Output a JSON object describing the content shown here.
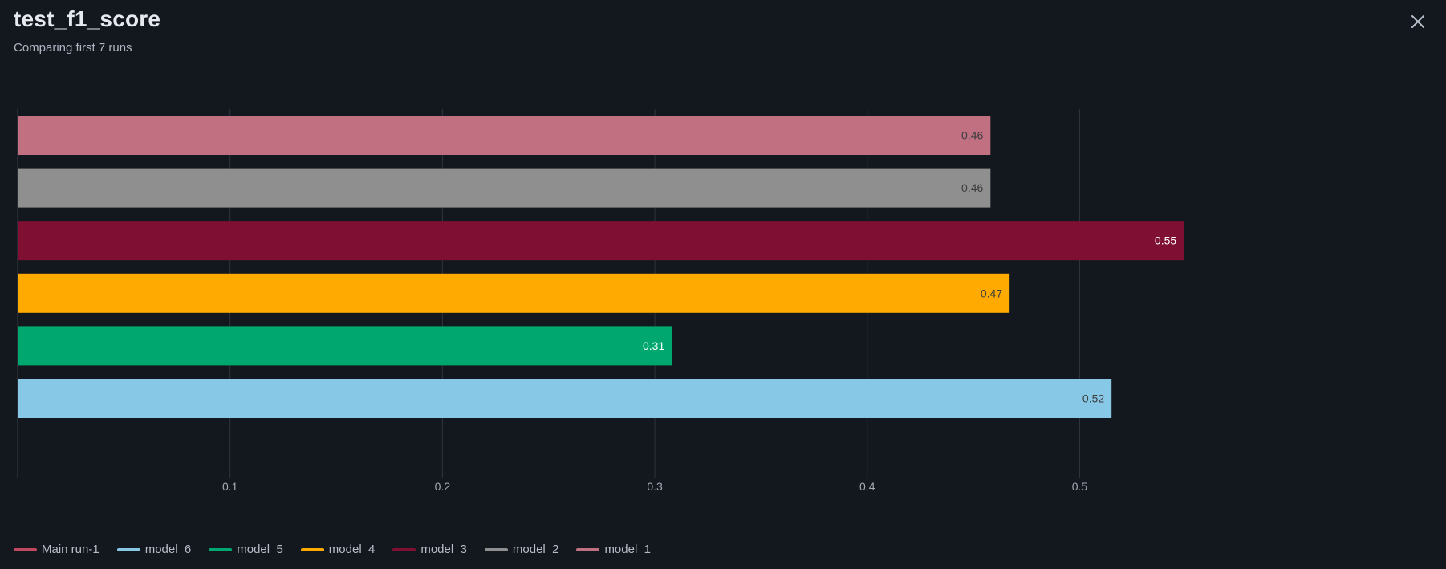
{
  "header": {
    "title": "test_f1_score",
    "subtitle": "Comparing first 7 runs",
    "close_icon": "close-icon"
  },
  "chart_data": {
    "type": "bar",
    "orientation": "horizontal",
    "title": "test_f1_score",
    "subtitle": "Comparing first 7 runs",
    "xlabel": "",
    "ylabel": "",
    "xlim": [
      0,
      0.5818
    ],
    "x_ticks": [
      "0.1",
      "0.2",
      "0.3",
      "0.4",
      "0.5"
    ],
    "x_tick_values": [
      0.1,
      0.2,
      0.3,
      0.4,
      0.5
    ],
    "grid": true,
    "legend_position": "bottom-left",
    "bars": [
      {
        "name": "model_1",
        "value": 0.458,
        "label": "0.46",
        "color": "#c07080",
        "label_color": "#3d3d3d"
      },
      {
        "name": "model_2",
        "value": 0.458,
        "label": "0.46",
        "color": "#8f8f8f",
        "label_color": "#3d3d3d"
      },
      {
        "name": "model_3",
        "value": 0.549,
        "label": "0.55",
        "color": "#7f1034",
        "label_color": "#ffffff"
      },
      {
        "name": "model_4",
        "value": 0.467,
        "label": "0.47",
        "color": "#ffaa00",
        "label_color": "#3d3d3d"
      },
      {
        "name": "model_5",
        "value": 0.308,
        "label": "0.31",
        "color": "#00a86f",
        "label_color": "#ffffff"
      },
      {
        "name": "model_6",
        "value": 0.515,
        "label": "0.52",
        "color": "#87c8e6",
        "label_color": "#3d3d3d"
      }
    ],
    "legend": [
      {
        "name": "Main run-1",
        "color": "#c0495f"
      },
      {
        "name": "model_6",
        "color": "#87c8e6"
      },
      {
        "name": "model_5",
        "color": "#00a86f"
      },
      {
        "name": "model_4",
        "color": "#ffaa00"
      },
      {
        "name": "model_3",
        "color": "#7f1034"
      },
      {
        "name": "model_2",
        "color": "#8f8f8f"
      },
      {
        "name": "model_1",
        "color": "#c07080"
      }
    ]
  }
}
